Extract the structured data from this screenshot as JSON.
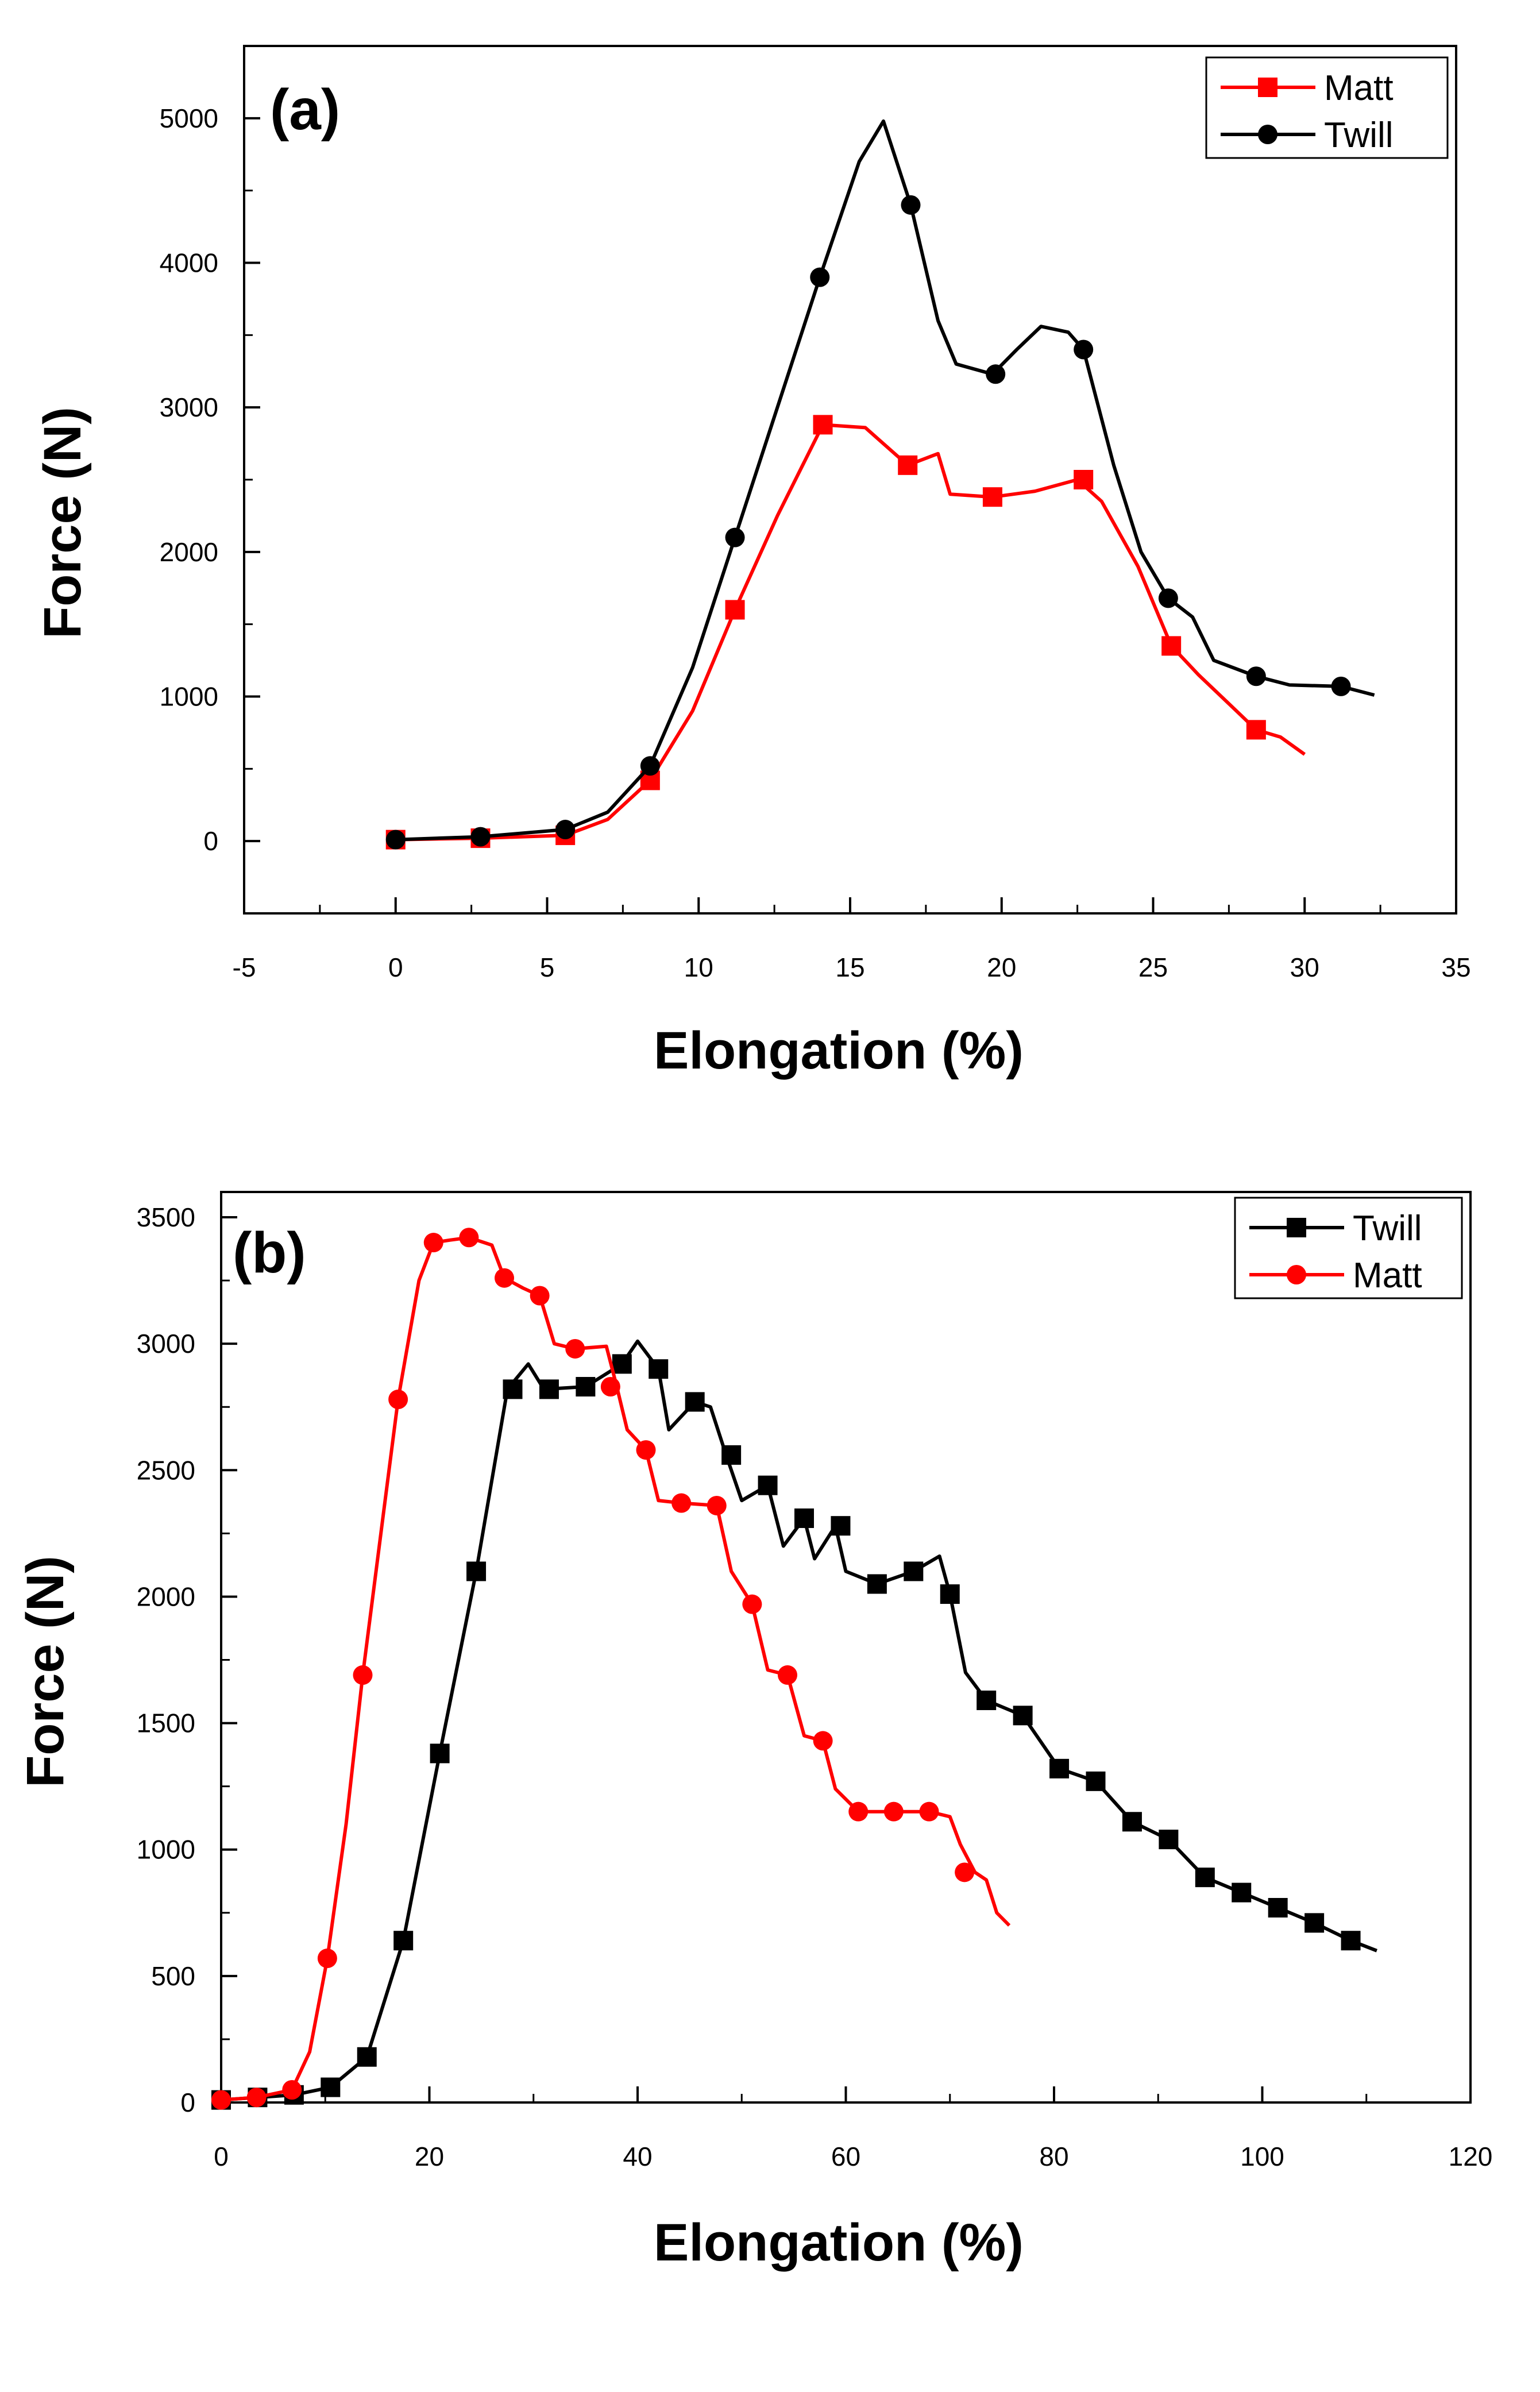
{
  "chart_data": [
    {
      "type": "line",
      "panel_label": "(a)",
      "xlabel": "Elongation (%)",
      "ylabel": "Force (N)",
      "xlim": [
        -5,
        35
      ],
      "ylim": [
        -500,
        5500
      ],
      "xticks": [
        -5,
        0,
        5,
        10,
        15,
        20,
        25,
        30,
        35
      ],
      "yticks": [
        0,
        1000,
        2000,
        3000,
        4000,
        5000
      ],
      "xtick_labels": [
        "-5",
        "0",
        "5",
        "10",
        "15",
        "20",
        "25",
        "30",
        "35"
      ],
      "ytick_labels": [
        "0",
        "1000",
        "2000",
        "3000",
        "4000",
        "5000"
      ],
      "legend_position": "top-right",
      "series": [
        {
          "name": "Matt",
          "color": "#ff0000",
          "marker": "square",
          "points": [
            [
              0,
              10
            ],
            [
              2.8,
              20
            ],
            [
              5.6,
              40
            ],
            [
              7,
              150
            ],
            [
              8.4,
              420
            ],
            [
              9.8,
              900
            ],
            [
              11.2,
              1600
            ],
            [
              12.6,
              2250
            ],
            [
              14.1,
              2880
            ],
            [
              15.5,
              2860
            ],
            [
              16.9,
              2600
            ],
            [
              17.9,
              2680
            ],
            [
              18.3,
              2400
            ],
            [
              19.7,
              2380
            ],
            [
              21.1,
              2420
            ],
            [
              22.5,
              2500
            ],
            [
              23.3,
              2350
            ],
            [
              24.5,
              1900
            ],
            [
              25.6,
              1350
            ],
            [
              26.5,
              1150
            ],
            [
              27.5,
              950
            ],
            [
              28.4,
              770
            ],
            [
              29.2,
              720
            ],
            [
              30,
              600
            ]
          ],
          "marker_points": [
            [
              0,
              10
            ],
            [
              2.8,
              20
            ],
            [
              5.6,
              40
            ],
            [
              8.4,
              420
            ],
            [
              11.2,
              1600
            ],
            [
              14.1,
              2880
            ],
            [
              16.9,
              2600
            ],
            [
              19.7,
              2380
            ],
            [
              22.7,
              2500
            ],
            [
              25.6,
              1350
            ],
            [
              28.4,
              770
            ]
          ]
        },
        {
          "name": "Twill",
          "color": "#000000",
          "marker": "circle",
          "points": [
            [
              0,
              10
            ],
            [
              2.8,
              30
            ],
            [
              5.6,
              80
            ],
            [
              7,
              200
            ],
            [
              8.4,
              520
            ],
            [
              9.8,
              1200
            ],
            [
              11.2,
              2100
            ],
            [
              12.6,
              3000
            ],
            [
              14,
              3900
            ],
            [
              15.3,
              4700
            ],
            [
              16.1,
              4980
            ],
            [
              17,
              4400
            ],
            [
              17.9,
              3600
            ],
            [
              18.5,
              3300
            ],
            [
              19.7,
              3230
            ],
            [
              20.5,
              3400
            ],
            [
              21.3,
              3560
            ],
            [
              22.2,
              3520
            ],
            [
              22.7,
              3400
            ],
            [
              23.7,
              2600
            ],
            [
              24.6,
              2000
            ],
            [
              25.5,
              1680
            ],
            [
              26.3,
              1550
            ],
            [
              27,
              1250
            ],
            [
              28.4,
              1140
            ],
            [
              29.5,
              1080
            ],
            [
              31.2,
              1070
            ],
            [
              32.3,
              1010
            ]
          ],
          "marker_points": [
            [
              0,
              10
            ],
            [
              2.8,
              30
            ],
            [
              5.6,
              80
            ],
            [
              8.4,
              520
            ],
            [
              11.2,
              2100
            ],
            [
              14,
              3900
            ],
            [
              17,
              4400
            ],
            [
              19.8,
              3230
            ],
            [
              22.7,
              3400
            ],
            [
              25.5,
              1680
            ],
            [
              28.4,
              1140
            ],
            [
              31.2,
              1070
            ]
          ]
        }
      ]
    },
    {
      "type": "line",
      "panel_label": "(b)",
      "xlabel": "Elongation (%)",
      "ylabel": "Force (N)",
      "xlim": [
        0,
        120
      ],
      "ylim": [
        0,
        3600
      ],
      "xticks": [
        0,
        20,
        40,
        60,
        80,
        100,
        120
      ],
      "yticks": [
        0,
        500,
        1000,
        1500,
        2000,
        2500,
        3000,
        3500
      ],
      "xtick_labels": [
        "0",
        "20",
        "40",
        "60",
        "80",
        "100",
        "120"
      ],
      "ytick_labels": [
        "0",
        "500",
        "1000",
        "1500",
        "2000",
        "2500",
        "3000",
        "3500"
      ],
      "legend_position": "top-right",
      "series": [
        {
          "name": "Twill",
          "color": "#000000",
          "marker": "square",
          "points": [
            [
              0,
              10
            ],
            [
              3.5,
              20
            ],
            [
              7,
              30
            ],
            [
              10.5,
              60
            ],
            [
              14,
              180
            ],
            [
              17.5,
              640
            ],
            [
              21,
              1380
            ],
            [
              24.5,
              2100
            ],
            [
              27.5,
              2820
            ],
            [
              29.5,
              2920
            ],
            [
              31,
              2820
            ],
            [
              35,
              2830
            ],
            [
              38.5,
              2920
            ],
            [
              40,
              3010
            ],
            [
              42,
              2900
            ],
            [
              43,
              2660
            ],
            [
              45.5,
              2770
            ],
            [
              47,
              2750
            ],
            [
              48.5,
              2560
            ],
            [
              50,
              2380
            ],
            [
              52.5,
              2440
            ],
            [
              54,
              2200
            ],
            [
              56,
              2310
            ],
            [
              57,
              2150
            ],
            [
              59,
              2280
            ],
            [
              60,
              2100
            ],
            [
              63,
              2050
            ],
            [
              66.5,
              2100
            ],
            [
              69,
              2160
            ],
            [
              70,
              2010
            ],
            [
              71.5,
              1700
            ],
            [
              73.5,
              1590
            ],
            [
              77,
              1530
            ],
            [
              80.5,
              1320
            ],
            [
              84,
              1270
            ],
            [
              87.5,
              1110
            ],
            [
              91,
              1040
            ],
            [
              94.5,
              890
            ],
            [
              98,
              830
            ],
            [
              101.5,
              770
            ],
            [
              105,
              710
            ],
            [
              108.5,
              640
            ],
            [
              111,
              600
            ]
          ],
          "marker_points": [
            [
              0,
              10
            ],
            [
              3.5,
              20
            ],
            [
              7,
              30
            ],
            [
              10.5,
              60
            ],
            [
              14,
              180
            ],
            [
              17.5,
              640
            ],
            [
              21,
              1380
            ],
            [
              24.5,
              2100
            ],
            [
              28,
              2820
            ],
            [
              31.5,
              2820
            ],
            [
              35,
              2830
            ],
            [
              38.5,
              2920
            ],
            [
              42,
              2900
            ],
            [
              45.5,
              2770
            ],
            [
              49,
              2560
            ],
            [
              52.5,
              2440
            ],
            [
              56,
              2310
            ],
            [
              59.5,
              2280
            ],
            [
              63,
              2050
            ],
            [
              66.5,
              2100
            ],
            [
              70,
              2010
            ],
            [
              73.5,
              1590
            ],
            [
              77,
              1530
            ],
            [
              80.5,
              1320
            ],
            [
              84,
              1270
            ],
            [
              87.5,
              1110
            ],
            [
              91,
              1040
            ],
            [
              94.5,
              890
            ],
            [
              98,
              830
            ],
            [
              101.5,
              770
            ],
            [
              105,
              710
            ],
            [
              108.5,
              640
            ]
          ]
        },
        {
          "name": "Matt",
          "color": "#ff0000",
          "marker": "circle",
          "points": [
            [
              0,
              10
            ],
            [
              3.4,
              20
            ],
            [
              6.8,
              50
            ],
            [
              8.5,
              200
            ],
            [
              10.2,
              570
            ],
            [
              12,
              1100
            ],
            [
              13.6,
              1690
            ],
            [
              15.5,
              2300
            ],
            [
              17,
              2780
            ],
            [
              19,
              3250
            ],
            [
              20.4,
              3400
            ],
            [
              22,
              3410
            ],
            [
              23.8,
              3420
            ],
            [
              26,
              3390
            ],
            [
              27.2,
              3260
            ],
            [
              29,
              3220
            ],
            [
              30.6,
              3190
            ],
            [
              32,
              3000
            ],
            [
              34,
              2980
            ],
            [
              37,
              2990
            ],
            [
              38,
              2830
            ],
            [
              39,
              2660
            ],
            [
              40.8,
              2580
            ],
            [
              42,
              2380
            ],
            [
              44.2,
              2370
            ],
            [
              47.6,
              2360
            ],
            [
              49,
              2100
            ],
            [
              51,
              1970
            ],
            [
              52.5,
              1710
            ],
            [
              54.4,
              1690
            ],
            [
              56,
              1450
            ],
            [
              57.8,
              1430
            ],
            [
              59,
              1240
            ],
            [
              61.2,
              1150
            ],
            [
              65,
              1150
            ],
            [
              68,
              1150
            ],
            [
              70,
              1130
            ],
            [
              71,
              1020
            ],
            [
              72.4,
              910
            ],
            [
              73.5,
              880
            ],
            [
              74.5,
              750
            ],
            [
              75.7,
              700
            ]
          ],
          "marker_points": [
            [
              0,
              10
            ],
            [
              3.4,
              20
            ],
            [
              6.8,
              50
            ],
            [
              10.2,
              570
            ],
            [
              13.6,
              1690
            ],
            [
              17,
              2780
            ],
            [
              20.4,
              3400
            ],
            [
              23.8,
              3420
            ],
            [
              27.2,
              3260
            ],
            [
              30.6,
              3190
            ],
            [
              34,
              2980
            ],
            [
              37.4,
              2830
            ],
            [
              40.8,
              2580
            ],
            [
              44.2,
              2370
            ],
            [
              47.6,
              2360
            ],
            [
              51,
              1970
            ],
            [
              54.4,
              1690
            ],
            [
              57.8,
              1430
            ],
            [
              61.2,
              1150
            ],
            [
              64.6,
              1150
            ],
            [
              68,
              1150
            ],
            [
              71.4,
              910
            ]
          ]
        }
      ]
    }
  ]
}
